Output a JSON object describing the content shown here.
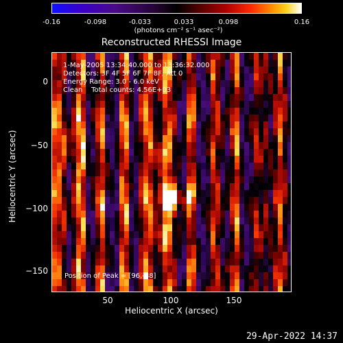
{
  "colorbar": {
    "ticks": [
      "-0.16",
      "-0.098",
      "-0.033",
      "0.033",
      "0.098",
      "0.16"
    ],
    "unit": "(photons cm⁻² s⁻¹ asec⁻²)"
  },
  "title": "Reconstructed RHESSI Image",
  "info": {
    "time": "1-May-2005 13:34:40.000 to 13:36:32.000",
    "detectors": "Detectors: 3F 4F 5F 6F 7F 8F, Att 0",
    "energy": "Energy Range: 3.0 - 6.0 keV",
    "clean": "Clean    Total counts: 4.56E+03",
    "peak": "Position of Peak = [96,-88]"
  },
  "axes": {
    "xlabel": "Heliocentric X (arcsec)",
    "ylabel": "Heliocentric Y (arcsec)",
    "xticks": [
      "50",
      "100",
      "150"
    ],
    "yticks": [
      "0",
      "−50",
      "−100",
      "−150"
    ]
  },
  "timestamp": "29-Apr-2022 14:37"
}
